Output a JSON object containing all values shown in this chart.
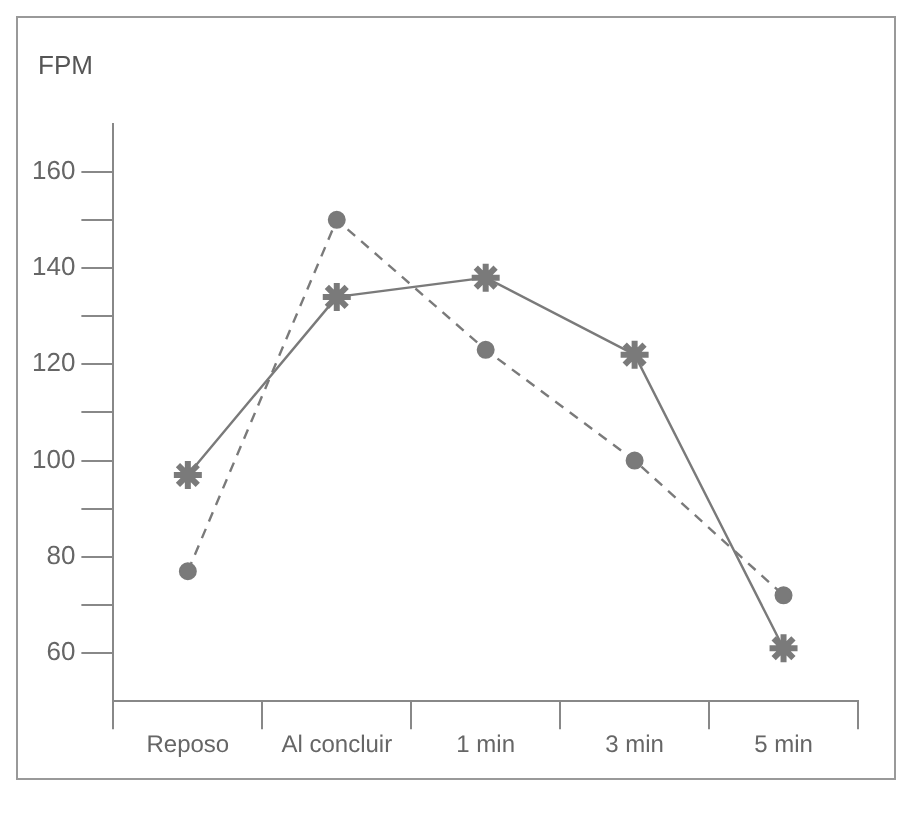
{
  "chart_data": {
    "type": "line",
    "ylabel": "FPM",
    "categories": [
      "Reposo",
      "Al concluir",
      "1 min",
      "3 min",
      "5 min"
    ],
    "series": [
      {
        "color": "#7a7a7a",
        "marker": "cross",
        "line_style": "solid",
        "values": [
          97,
          134,
          138,
          122,
          61
        ]
      },
      {
        "color": "#7a7a7a",
        "marker": "circle",
        "line_style": "dashed",
        "values": [
          77,
          150,
          123,
          100,
          72
        ]
      }
    ],
    "ylim": [
      50,
      170
    ],
    "yticks": [
      60,
      {
        "value": 70,
        "label": null
      },
      80,
      {
        "value": 90,
        "label": null
      },
      100,
      {
        "value": 110,
        "label": null
      },
      120,
      {
        "value": 130,
        "label": null
      },
      140,
      {
        "value": 150,
        "label": null
      },
      160
    ],
    "grid": false,
    "legend": false
  }
}
